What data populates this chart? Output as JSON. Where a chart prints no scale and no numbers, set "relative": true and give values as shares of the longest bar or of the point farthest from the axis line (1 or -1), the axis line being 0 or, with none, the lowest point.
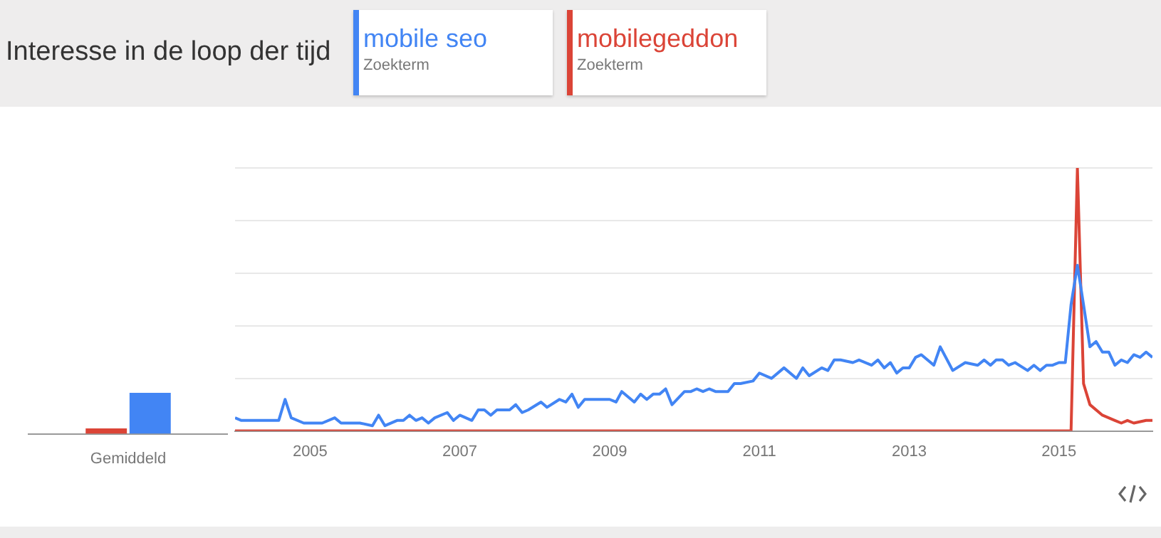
{
  "chart_data": [
    {
      "type": "bar",
      "categories": [
        "Gemiddeld"
      ],
      "relative": true,
      "series": [
        {
          "color": "#4285f4",
          "values": [
            1
          ]
        },
        {
          "color": "#db4437",
          "values": [
            0.13
          ]
        }
      ]
    },
    {
      "type": "line",
      "title": "Interesse in de loop der tijd",
      "annotations": [
        "Zoekterm",
        "Zoekterm"
      ],
      "legend": "top",
      "grid": "y",
      "tick_labels": "x",
      "relative": true,
      "marker": "none",
      "xlim": [
        "2004-01",
        "2016-04"
      ],
      "xticks": [
        "2005",
        "2007",
        "2009",
        "2011",
        "2013",
        "2015"
      ],
      "series": [
        {
          "name": "mobile seo",
          "color": "#4285f4",
          "x": [
            "2004-01",
            "2004-02",
            "2004-08",
            "2004-09",
            "2004-10",
            "2004-12",
            "2005-03",
            "2005-05",
            "2005-06",
            "2005-09",
            "2005-11",
            "2005-12",
            "2006-01",
            "2006-03",
            "2006-04",
            "2006-05",
            "2006-06",
            "2006-07",
            "2006-08",
            "2006-09",
            "2006-11",
            "2006-12",
            "2007-01",
            "2007-03",
            "2007-04",
            "2007-05",
            "2007-06",
            "2007-07",
            "2007-09",
            "2007-10",
            "2007-11",
            "2007-12",
            "2008-02",
            "2008-03",
            "2008-05",
            "2008-06",
            "2008-07",
            "2008-08",
            "2008-09",
            "2009-01",
            "2009-02",
            "2009-03",
            "2009-05",
            "2009-06",
            "2009-07",
            "2009-08",
            "2009-09",
            "2009-10",
            "2009-11",
            "2010-01",
            "2010-02",
            "2010-03",
            "2010-04",
            "2010-05",
            "2010-06",
            "2010-08",
            "2010-09",
            "2010-10",
            "2010-12",
            "2011-01",
            "2011-03",
            "2011-05",
            "2011-07",
            "2011-08",
            "2011-09",
            "2011-11",
            "2011-12",
            "2012-01",
            "2012-02",
            "2012-04",
            "2012-05",
            "2012-07",
            "2012-08",
            "2012-09",
            "2012-10",
            "2012-11",
            "2012-12",
            "2013-01",
            "2013-02",
            "2013-03",
            "2013-05",
            "2013-06",
            "2013-08",
            "2013-10",
            "2013-12",
            "2014-01",
            "2014-02",
            "2014-03",
            "2014-04",
            "2014-05",
            "2014-06",
            "2014-08",
            "2014-09",
            "2014-10",
            "2014-11",
            "2014-12",
            "2015-01",
            "2015-02",
            "2015-03",
            "2015-04",
            "2015-05",
            "2015-06",
            "2015-07",
            "2015-08",
            "2015-09",
            "2015-10",
            "2015-11",
            "2015-12",
            "2016-01",
            "2016-02",
            "2016-03",
            "2016-04"
          ],
          "values": [
            0.05,
            0.04,
            0.04,
            0.12,
            0.05,
            0.03,
            0.03,
            0.05,
            0.03,
            0.03,
            0.02,
            0.06,
            0.02,
            0.04,
            0.04,
            0.06,
            0.04,
            0.05,
            0.03,
            0.05,
            0.07,
            0.04,
            0.06,
            0.04,
            0.08,
            0.08,
            0.06,
            0.08,
            0.08,
            0.1,
            0.07,
            0.08,
            0.11,
            0.09,
            0.12,
            0.11,
            0.14,
            0.09,
            0.12,
            0.12,
            0.11,
            0.15,
            0.11,
            0.14,
            0.12,
            0.14,
            0.14,
            0.16,
            0.1,
            0.15,
            0.15,
            0.16,
            0.15,
            0.16,
            0.15,
            0.15,
            0.18,
            0.18,
            0.19,
            0.22,
            0.2,
            0.24,
            0.2,
            0.24,
            0.21,
            0.24,
            0.23,
            0.27,
            0.27,
            0.26,
            0.27,
            0.25,
            0.27,
            0.24,
            0.26,
            0.22,
            0.24,
            0.24,
            0.28,
            0.29,
            0.25,
            0.32,
            0.23,
            0.26,
            0.25,
            0.27,
            0.25,
            0.27,
            0.27,
            0.25,
            0.26,
            0.23,
            0.25,
            0.23,
            0.25,
            0.25,
            0.26,
            0.26,
            0.48,
            0.63,
            0.48,
            0.32,
            0.34,
            0.3,
            0.3,
            0.25,
            0.27,
            0.26,
            0.29,
            0.28,
            0.3,
            0.28
          ]
        },
        {
          "name": "mobilegeddon",
          "color": "#db4437",
          "x": [
            "2004-01",
            "2015-03",
            "2015-04",
            "2015-05",
            "2015-06",
            "2015-08",
            "2015-10",
            "2015-11",
            "2015-12",
            "2016-01",
            "2016-03",
            "2016-04"
          ],
          "values": [
            0,
            0,
            1,
            0.18,
            0.1,
            0.06,
            0.04,
            0.03,
            0.04,
            0.03,
            0.04,
            0.04
          ]
        }
      ]
    }
  ]
}
